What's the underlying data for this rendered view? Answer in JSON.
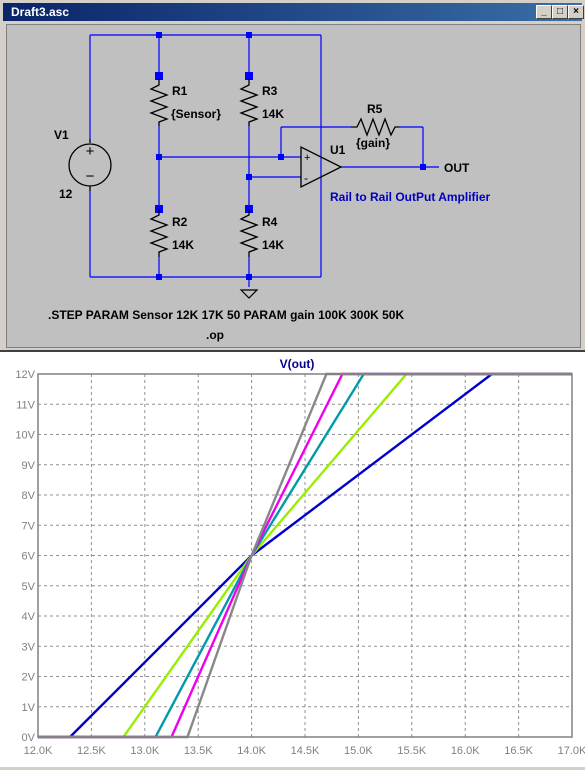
{
  "window": {
    "title": "Draft3.asc",
    "buttons": [
      "_",
      "□",
      "×"
    ]
  },
  "schematic": {
    "components": [
      {
        "ref": "V1",
        "value": "12"
      },
      {
        "ref": "R1",
        "value": "{Sensor}"
      },
      {
        "ref": "R2",
        "value": "14K"
      },
      {
        "ref": "R3",
        "value": "14K"
      },
      {
        "ref": "R4",
        "value": "14K"
      },
      {
        "ref": "R5",
        "value": "{gain}"
      },
      {
        "ref": "U1",
        "value": ""
      }
    ],
    "net_label": "OUT",
    "opamp_plus": "+",
    "opamp_minus": "-",
    "comment": "Rail to Rail OutPut Amplifier",
    "directive_step": ".STEP PARAM Sensor 12K 17K 50 PARAM gain 100K 300K 50K",
    "directive_op": ".op",
    "colors": {
      "wire": "#0000ff",
      "text": "#000000",
      "comment": "#0000c0"
    }
  },
  "chart_data": {
    "type": "line",
    "title": "V(out)",
    "xlabel": "",
    "ylabel": "",
    "xlim": [
      12000,
      17000
    ],
    "ylim": [
      0,
      12
    ],
    "grid": true,
    "x_ticks": [
      "12.0K",
      "12.5K",
      "13.0K",
      "13.5K",
      "14.0K",
      "14.5K",
      "15.0K",
      "15.5K",
      "16.0K",
      "16.5K",
      "17.0K"
    ],
    "y_ticks": [
      "0V",
      "1V",
      "2V",
      "3V",
      "4V",
      "5V",
      "6V",
      "7V",
      "8V",
      "9V",
      "10V",
      "11V",
      "12V"
    ],
    "series": [
      {
        "color": "#0000cc",
        "x": [
          12300,
          14000,
          16250
        ],
        "y": [
          0,
          6,
          12
        ]
      },
      {
        "color": "#99ee00",
        "x": [
          12800,
          14000,
          15450
        ],
        "y": [
          0,
          6,
          12
        ]
      },
      {
        "color": "#009aaa",
        "x": [
          13100,
          14000,
          15050
        ],
        "y": [
          0,
          6,
          12
        ]
      },
      {
        "color": "#ee00ee",
        "x": [
          13250,
          14000,
          14850
        ],
        "y": [
          0,
          6,
          12
        ]
      },
      {
        "color": "#888888",
        "x": [
          13400,
          14000,
          14700
        ],
        "y": [
          0,
          6,
          12
        ]
      }
    ]
  }
}
